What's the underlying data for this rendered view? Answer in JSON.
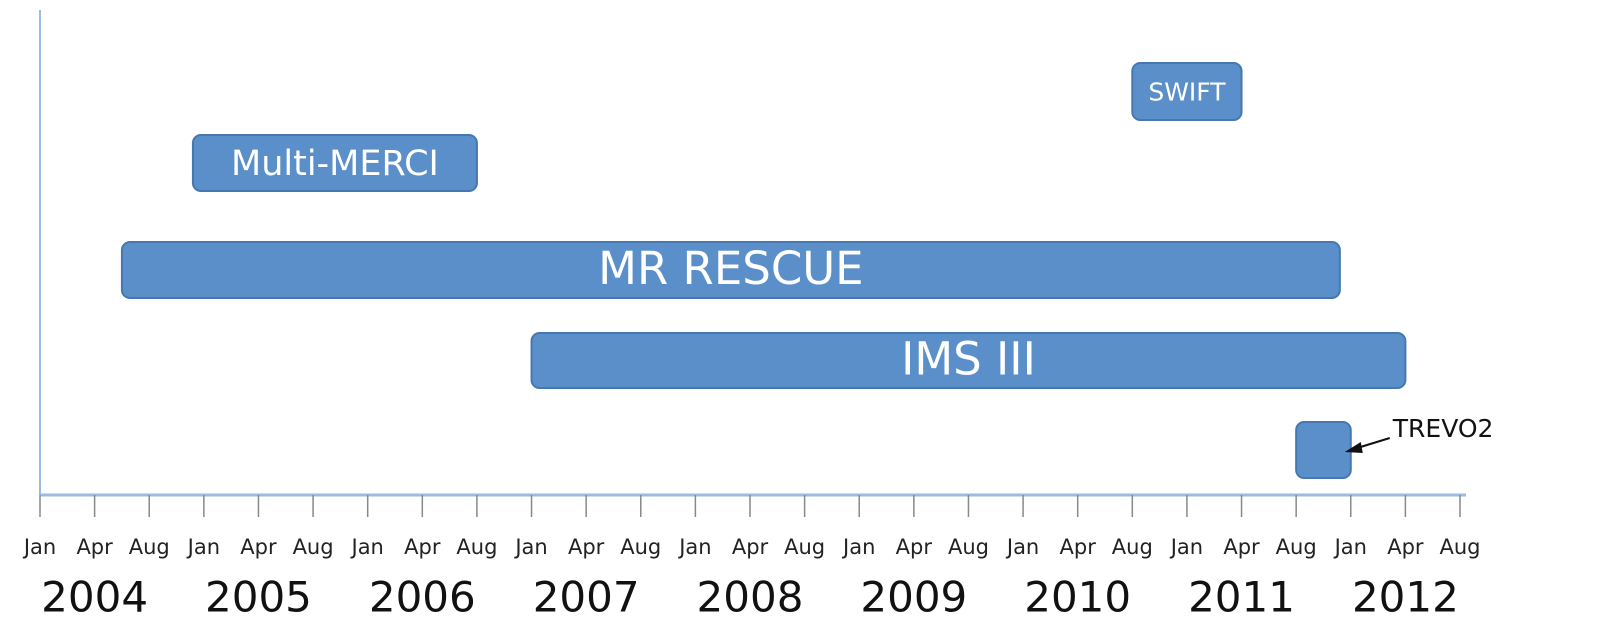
{
  "chart_data": {
    "type": "timeline",
    "color": "#5b8fc9",
    "axis_color": "#9bbbe0",
    "xticks": [
      {
        "value": "2004-01",
        "label": "Jan"
      },
      {
        "value": "2004-04",
        "label": "Apr"
      },
      {
        "value": "2004-08",
        "label": "Aug"
      },
      {
        "value": "2005-01",
        "label": "Jan"
      },
      {
        "value": "2005-04",
        "label": "Apr"
      },
      {
        "value": "2005-08",
        "label": "Aug"
      },
      {
        "value": "2006-01",
        "label": "Jan"
      },
      {
        "value": "2006-04",
        "label": "Apr"
      },
      {
        "value": "2006-08",
        "label": "Aug"
      },
      {
        "value": "2007-01",
        "label": "Jan"
      },
      {
        "value": "2007-04",
        "label": "Apr"
      },
      {
        "value": "2007-08",
        "label": "Aug"
      },
      {
        "value": "2008-01",
        "label": "Jan"
      },
      {
        "value": "2008-04",
        "label": "Apr"
      },
      {
        "value": "2008-08",
        "label": "Aug"
      },
      {
        "value": "2009-01",
        "label": "Jan"
      },
      {
        "value": "2009-04",
        "label": "Apr"
      },
      {
        "value": "2009-08",
        "label": "Aug"
      },
      {
        "value": "2010-01",
        "label": "Jan"
      },
      {
        "value": "2010-04",
        "label": "Apr"
      },
      {
        "value": "2010-08",
        "label": "Aug"
      },
      {
        "value": "2011-01",
        "label": "Jan"
      },
      {
        "value": "2011-04",
        "label": "Apr"
      },
      {
        "value": "2011-08",
        "label": "Aug"
      },
      {
        "value": "2012-01",
        "label": "Jan"
      },
      {
        "value": "2012-04",
        "label": "Apr"
      },
      {
        "value": "2012-08",
        "label": "Aug"
      }
    ],
    "years": [
      "2004",
      "2005",
      "2006",
      "2007",
      "2008",
      "2009",
      "2010",
      "2011",
      "2012"
    ],
    "tasks": [
      {
        "name": "SWIFT",
        "start": "2010-08",
        "end": "2011-04"
      },
      {
        "name": "Multi-MERCI",
        "start": "2004-12",
        "end": "2006-08"
      },
      {
        "name": "MR RESCUE",
        "start": "2004-06",
        "end": "2011-12"
      },
      {
        "name": "IMS III",
        "start": "2007-01",
        "end": "2012-04"
      },
      {
        "name": "TREVO2",
        "start": "2011-08",
        "end": "2012-01",
        "label_outside": true
      }
    ]
  }
}
